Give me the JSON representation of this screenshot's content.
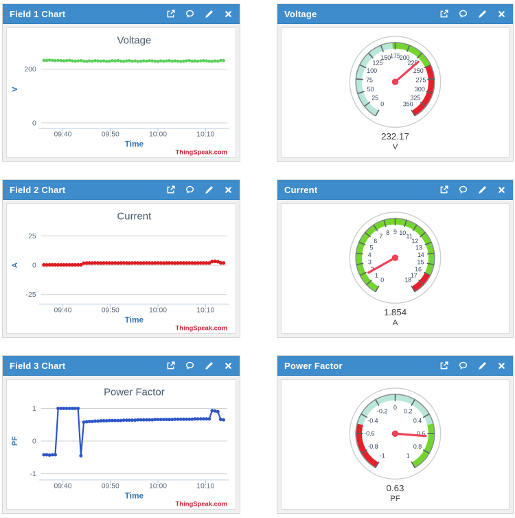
{
  "panels": [
    {
      "title": "Field 1 Chart",
      "kind": "line-chart"
    },
    {
      "title": "Voltage",
      "kind": "gauge"
    },
    {
      "title": "Field 2 Chart",
      "kind": "line-chart"
    },
    {
      "title": "Current",
      "kind": "gauge"
    },
    {
      "title": "Field 3 Chart",
      "kind": "line-chart"
    },
    {
      "title": "Power Factor",
      "kind": "gauge"
    }
  ],
  "header_icons": [
    {
      "name": "open-chart-icon"
    },
    {
      "name": "comment-icon"
    },
    {
      "name": "edit-icon"
    },
    {
      "name": "close-icon"
    }
  ],
  "colors": {
    "header_bg": "#3e8ccc",
    "panel_bg": "#f0f0f0",
    "panel_border": "#d6d6d6",
    "chart_title": "#44586b",
    "axis_label_blue": "#2c79b8",
    "tick_text": "#5c6b7a",
    "grid_line": "#ccd2d7",
    "axis_line": "#b6cfe6",
    "watermark_red": "#cc2233",
    "voltage_series": "#58d058",
    "current_series": "#dd1c20",
    "pf_series": "#2d55c8",
    "gauge_teal": "#b8e7da",
    "gauge_green": "#74d62d",
    "gauge_red": "#e6202a",
    "gauge_needle": "#ef4156",
    "gauge_label_text": "#31415c"
  },
  "chart_data": [
    {
      "type": "line",
      "title": "Voltage",
      "xlabel": "Time",
      "ylabel": "V",
      "watermark": "ThingSpeak.com",
      "color": "#58d058",
      "x_format": "minutes_after_09:00",
      "xlim": [
        35.4,
        74.6
      ],
      "ylim": [
        -15,
        265
      ],
      "x_ticks": [
        {
          "v": 40,
          "label": "09:40"
        },
        {
          "v": 50,
          "label": "09:50"
        },
        {
          "v": 60,
          "label": "10:00"
        },
        {
          "v": 70,
          "label": "10:10"
        }
      ],
      "y_ticks": [
        {
          "v": 200,
          "label": "200"
        },
        {
          "v": 0,
          "label": "0"
        }
      ],
      "x": [
        36,
        36.6,
        37.2,
        37.8,
        38.4,
        39,
        39.6,
        40.2,
        40.8,
        41.4,
        42,
        42.6,
        43.2,
        43.8,
        44.4,
        45,
        45.6,
        46.2,
        46.8,
        47.4,
        48,
        48.6,
        49.2,
        49.8,
        50.4,
        51,
        51.6,
        52.2,
        52.8,
        53.4,
        54,
        54.6,
        55.2,
        55.8,
        56.4,
        57,
        57.6,
        58.2,
        58.8,
        59.4,
        60,
        60.6,
        61.2,
        61.8,
        62.4,
        63,
        63.6,
        64.2,
        64.8,
        65.4,
        66,
        66.6,
        67.2,
        67.8,
        68.4,
        69,
        69.6,
        70.2,
        70.8,
        71.4,
        72,
        72.6,
        73.2,
        73.8
      ],
      "values": [
        233,
        233,
        234,
        233,
        232,
        233,
        232,
        231,
        232,
        233,
        231,
        230,
        231,
        232,
        230,
        229,
        231,
        230,
        232,
        231,
        230,
        231,
        229,
        230,
        232,
        231,
        233,
        230,
        229,
        231,
        232,
        230,
        231,
        229,
        230,
        231,
        230,
        232,
        231,
        230,
        229,
        231,
        230,
        231,
        232,
        230,
        231,
        230,
        229,
        230,
        231,
        232,
        230,
        231,
        230,
        231,
        232,
        231,
        230,
        229,
        231,
        230,
        233,
        232
      ]
    },
    {
      "type": "gauge",
      "value": 232.17,
      "value_label": "232.17",
      "unit": "V",
      "min": 0,
      "max": 350,
      "tick_step": 25,
      "tick_labels": [
        "0",
        "25",
        "50",
        "75",
        "100",
        "125",
        "150",
        "175",
        "200",
        "225",
        "250",
        "275",
        "300",
        "325",
        "350"
      ],
      "bands": [
        {
          "from": 0,
          "to": 170,
          "color": "#b8e7da"
        },
        {
          "from": 170,
          "to": 250,
          "color": "#74d62d"
        },
        {
          "from": 250,
          "to": 350,
          "color": "#e6202a"
        }
      ]
    },
    {
      "type": "line",
      "title": "Current",
      "xlabel": "Time",
      "ylabel": "A",
      "watermark": "ThingSpeak.com",
      "color": "#dd1c20",
      "x_format": "minutes_after_09:00",
      "xlim": [
        35.4,
        74.6
      ],
      "ylim": [
        -32,
        32
      ],
      "x_ticks": [
        {
          "v": 40,
          "label": "09:40"
        },
        {
          "v": 50,
          "label": "09:50"
        },
        {
          "v": 60,
          "label": "10:00"
        },
        {
          "v": 70,
          "label": "10:10"
        }
      ],
      "y_ticks": [
        {
          "v": 25,
          "label": "25"
        },
        {
          "v": 0,
          "label": "0"
        },
        {
          "v": -25,
          "label": "-25"
        }
      ],
      "x": [
        36,
        36.6,
        37.2,
        37.8,
        38.4,
        39,
        39.6,
        40.2,
        40.8,
        41.4,
        42,
        42.6,
        43.2,
        43.8,
        44.4,
        45,
        45.6,
        46.2,
        46.8,
        47.4,
        48,
        48.6,
        49.2,
        49.8,
        50.4,
        51,
        51.6,
        52.2,
        52.8,
        53.4,
        54,
        54.6,
        55.2,
        55.8,
        56.4,
        57,
        57.6,
        58.2,
        58.8,
        59.4,
        60,
        60.6,
        61.2,
        61.8,
        62.4,
        63,
        63.6,
        64.2,
        64.8,
        65.4,
        66,
        66.6,
        67.2,
        67.8,
        68.4,
        69,
        69.6,
        70.2,
        70.8,
        71.4,
        72,
        72.6,
        73.2,
        73.8
      ],
      "values": [
        0.3,
        0.25,
        0.3,
        0.35,
        0.3,
        0.28,
        0.3,
        0.32,
        0.3,
        0.28,
        0.3,
        0.3,
        0.32,
        0.3,
        1.7,
        1.8,
        1.85,
        1.8,
        1.9,
        1.85,
        1.8,
        1.85,
        1.9,
        1.85,
        1.8,
        1.85,
        1.8,
        1.85,
        1.9,
        1.85,
        1.8,
        1.85,
        1.9,
        1.85,
        1.8,
        1.85,
        1.9,
        1.85,
        1.8,
        1.85,
        1.9,
        1.85,
        1.8,
        1.85,
        1.9,
        1.85,
        1.8,
        1.85,
        1.9,
        1.85,
        1.85,
        1.9,
        1.85,
        1.8,
        1.85,
        1.9,
        1.85,
        1.9,
        1.85,
        3.2,
        3.3,
        3.0,
        2.0,
        1.9
      ]
    },
    {
      "type": "gauge",
      "value": 1.854,
      "value_label": "1.854",
      "unit": "A",
      "min": 0,
      "max": 18,
      "tick_step": 1,
      "tick_labels": [
        "0",
        "1",
        "2",
        "3",
        "4",
        "5",
        "6",
        "7",
        "8",
        "9",
        "10",
        "11",
        "12",
        "13",
        "14",
        "15",
        "16",
        "17",
        "18"
      ],
      "bands": [
        {
          "from": 0,
          "to": 16,
          "color": "#74d62d"
        },
        {
          "from": 16,
          "to": 18,
          "color": "#e6202a"
        }
      ]
    },
    {
      "type": "line",
      "title": "Power Factor",
      "xlabel": "Time",
      "ylabel": "PF",
      "watermark": "ThingSpeak.com",
      "color": "#2d55c8",
      "x_format": "minutes_after_09:00",
      "xlim": [
        35.4,
        74.6
      ],
      "ylim": [
        -1.15,
        1.15
      ],
      "x_ticks": [
        {
          "v": 40,
          "label": "09:40"
        },
        {
          "v": 50,
          "label": "09:50"
        },
        {
          "v": 60,
          "label": "10:00"
        },
        {
          "v": 70,
          "label": "10:10"
        }
      ],
      "y_ticks": [
        {
          "v": 1,
          "label": "1"
        },
        {
          "v": 0,
          "label": "0"
        },
        {
          "v": -1,
          "label": "-1"
        }
      ],
      "x": [
        36,
        36.6,
        37.2,
        37.8,
        38.4,
        39,
        39.6,
        40.2,
        40.8,
        41.4,
        42,
        42.6,
        43.2,
        43.8,
        44.4,
        45,
        45.6,
        46.2,
        46.8,
        47.4,
        48,
        48.6,
        49.2,
        49.8,
        50.4,
        51,
        51.6,
        52.2,
        52.8,
        53.4,
        54,
        54.6,
        55.2,
        55.8,
        56.4,
        57,
        57.6,
        58.2,
        58.8,
        59.4,
        60,
        60.6,
        61.2,
        61.8,
        62.4,
        63,
        63.6,
        64.2,
        64.8,
        65.4,
        66,
        66.6,
        67.2,
        67.8,
        68.4,
        69,
        69.6,
        70.2,
        70.8,
        71.4,
        72,
        72.6,
        73.2,
        73.8
      ],
      "values": [
        -0.42,
        -0.42,
        -0.43,
        -0.42,
        -0.42,
        1,
        1,
        1,
        1,
        1,
        1,
        1,
        1,
        -0.45,
        0.58,
        0.59,
        0.6,
        0.6,
        0.61,
        0.61,
        0.62,
        0.62,
        0.62,
        0.63,
        0.63,
        0.63,
        0.63,
        0.63,
        0.64,
        0.64,
        0.64,
        0.64,
        0.64,
        0.65,
        0.65,
        0.65,
        0.65,
        0.65,
        0.65,
        0.66,
        0.66,
        0.66,
        0.66,
        0.66,
        0.66,
        0.66,
        0.67,
        0.67,
        0.67,
        0.67,
        0.67,
        0.67,
        0.67,
        0.68,
        0.68,
        0.68,
        0.68,
        0.68,
        0.68,
        0.93,
        0.92,
        0.9,
        0.66,
        0.65
      ]
    },
    {
      "type": "gauge",
      "value": 0.63,
      "value_label": "0.63",
      "unit": "PF",
      "min": -1,
      "max": 1,
      "tick_step": 0.2,
      "tick_labels": [
        "-1",
        "-0.8",
        "-0.6",
        "-0.4",
        "-0.2",
        "0",
        "0.2",
        "0.4",
        "0.6",
        "0.8",
        "1"
      ],
      "bands": [
        {
          "from": -1,
          "to": -0.5,
          "color": "#e6202a"
        },
        {
          "from": -0.5,
          "to": 0.5,
          "color": "#b8e7da"
        },
        {
          "from": 0.5,
          "to": 1,
          "color": "#74d62d"
        }
      ]
    }
  ]
}
